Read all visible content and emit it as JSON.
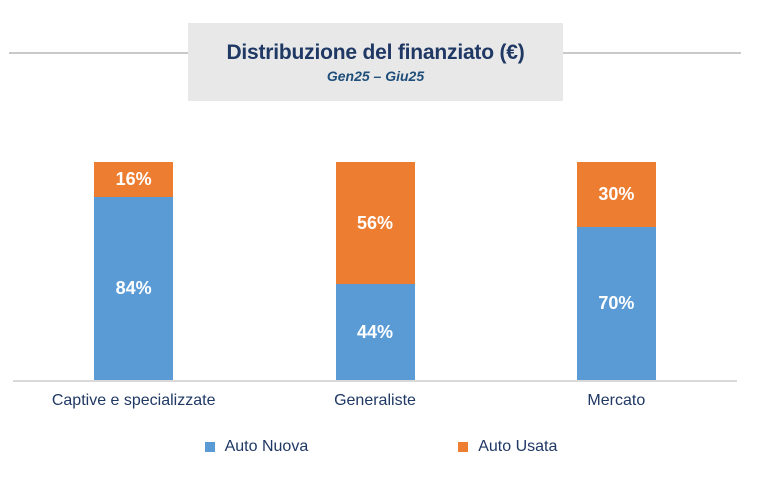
{
  "header": {
    "title": "Distribuzione del finanziato (€)",
    "subtitle": "Gen25 – Giu25"
  },
  "chart_data": {
    "type": "bar",
    "stacked": true,
    "orientation": "vertical",
    "title": "Distribuzione del finanziato (€)",
    "subtitle": "Gen25 – Giu25",
    "xlabel": "",
    "ylabel": "",
    "unit": "%",
    "ylim": [
      0,
      100
    ],
    "grid": false,
    "axis_labels_hidden": true,
    "legend_position": "bottom",
    "categories": [
      "Captive e specializzate",
      "Generaliste",
      "Mercato"
    ],
    "series": [
      {
        "name": "Auto Nuova",
        "color": "#5b9bd5",
        "values": [
          84,
          44,
          70
        ],
        "labels": [
          "84%",
          "44%",
          "70%"
        ]
      },
      {
        "name": "Auto Usata",
        "color": "#ed7d31",
        "values": [
          16,
          56,
          30
        ],
        "labels": [
          "16%",
          "56%",
          "30%"
        ]
      }
    ],
    "data_label_color": "#ffffff"
  },
  "colors": {
    "auto_nuova_blue": "#5b9bd5",
    "auto_usata_orange": "#ed7d31",
    "title_navy": "#1f3864",
    "subtitle_navy": "#1f4e79",
    "title_box_bg": "#e8e8e9",
    "header_rule_grey": "#c9c9c9",
    "axis_grey": "#d9d9d9"
  }
}
